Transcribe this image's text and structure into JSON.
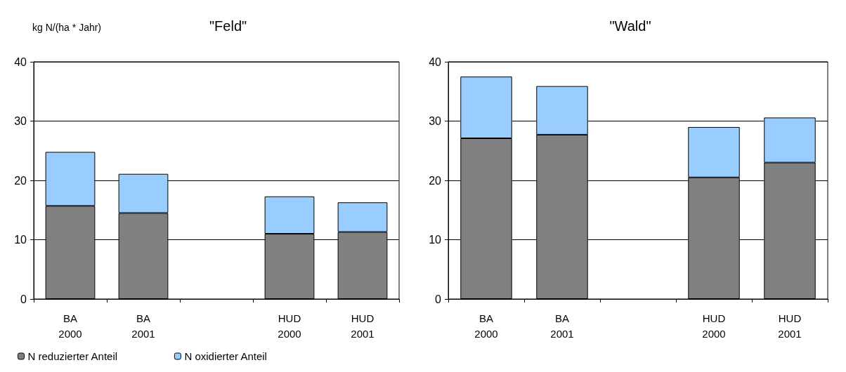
{
  "chart_data": [
    {
      "type": "bar",
      "title": "\"Feld\"",
      "ylabel": "kg N/(ha * Jahr)",
      "categories": [
        "BA\n2000",
        "BA\n2001",
        null,
        "HUD\n2000",
        "HUD\n2001"
      ],
      "stacked": true,
      "series": [
        {
          "name": "N reduzierter Anteil",
          "color": "#808080",
          "values": [
            15.7,
            14.5,
            null,
            11.0,
            11.3
          ]
        },
        {
          "name": "N oxidierter Anteil",
          "color": "#99ccff",
          "values": [
            9.1,
            6.6,
            null,
            6.3,
            5.0
          ]
        }
      ],
      "ylim": [
        0,
        40
      ],
      "yticks": [
        0,
        10,
        20,
        30,
        40
      ],
      "grid": "y",
      "legend": "bottom left"
    },
    {
      "type": "bar",
      "title": "\"Wald\"",
      "categories": [
        "BA\n2000",
        "BA\n2001",
        null,
        "HUD\n2000",
        "HUD\n2001"
      ],
      "stacked": true,
      "series": [
        {
          "color": "#808080",
          "values": [
            27.1,
            27.7,
            null,
            20.5,
            23.0
          ]
        },
        {
          "color": "#99ccff",
          "values": [
            10.4,
            8.2,
            null,
            8.5,
            7.6
          ]
        }
      ],
      "ylim": [
        0,
        40
      ],
      "yticks": [
        0,
        10,
        20,
        30,
        40
      ],
      "grid": "y"
    }
  ]
}
